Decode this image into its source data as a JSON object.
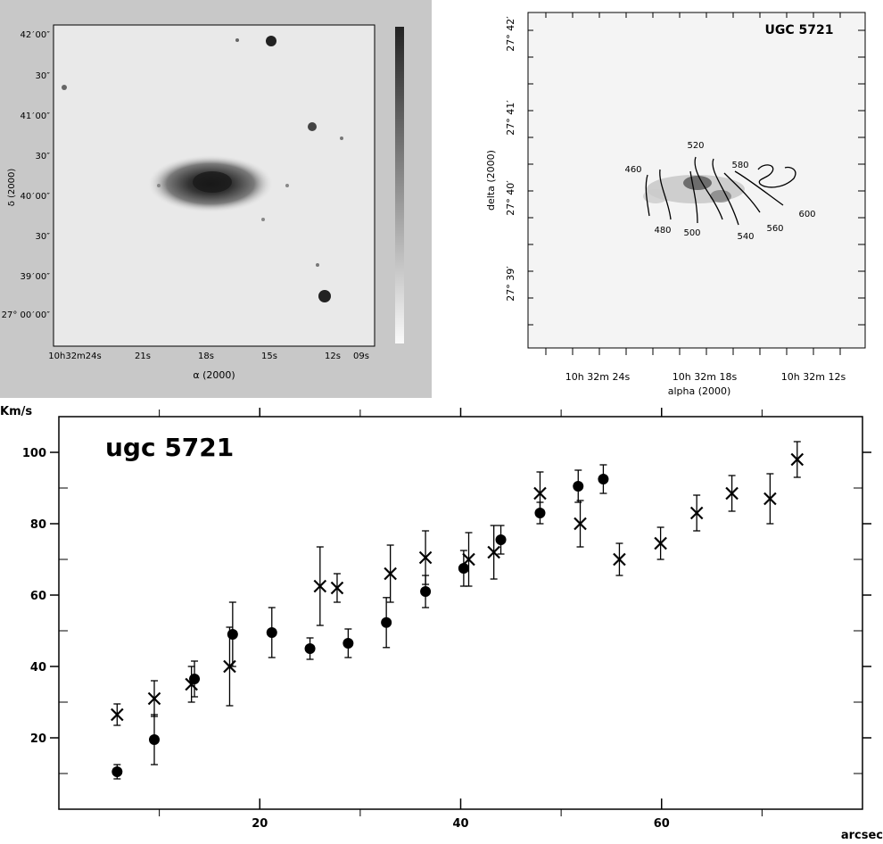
{
  "panel_a": {
    "dec_ticks": [
      "42 ′ 00″",
      "30″",
      "41 ′ 00″",
      "30″",
      "40 ′ 00″",
      "30″",
      "39 ′ 00″",
      "27° 00 ′ 00″"
    ],
    "ra_ticks": [
      "10h32m24s",
      "21s",
      "18s",
      "15s",
      "12s",
      "09s"
    ],
    "xlabel": "α (2000)",
    "ylabel": "δ (2000)"
  },
  "panel_b": {
    "title": "UGC 5721",
    "xlabel": "alpha (2000)",
    "ylabel": "delta (2000)",
    "ra_ticks": [
      "10h 32m 24s",
      "10h 32m 18s",
      "10h 32m 12s"
    ],
    "dec_ticks": [
      "27° 42′",
      "27° 41′",
      "27° 40′",
      "27° 39′"
    ],
    "contour_labels": [
      "460",
      "480",
      "500",
      "520",
      "540",
      "560",
      "580",
      "600"
    ]
  },
  "chart_data": {
    "type": "scatter",
    "title": "ugc 5721",
    "xlabel": "arcsec",
    "ylabel": "Km/s",
    "xlim": [
      0,
      80
    ],
    "ylim": [
      0,
      110
    ],
    "x_ticks": [
      20,
      40,
      60
    ],
    "y_ticks": [
      20,
      40,
      60,
      80,
      100
    ],
    "series": [
      {
        "marker": "circle",
        "points": [
          {
            "x": 5.8,
            "y": 10.5,
            "err": 2
          },
          {
            "x": 9.5,
            "y": 19.5,
            "err": 7
          },
          {
            "x": 13.5,
            "y": 36.5,
            "err": 5
          },
          {
            "x": 17.3,
            "y": 49,
            "err": 9
          },
          {
            "x": 21.2,
            "y": 49.5,
            "err": 7
          },
          {
            "x": 25,
            "y": 45,
            "err": 3
          },
          {
            "x": 28.8,
            "y": 46.5,
            "err": 4
          },
          {
            "x": 32.6,
            "y": 52.3,
            "err": 7
          },
          {
            "x": 36.5,
            "y": 61,
            "err": 4.5
          },
          {
            "x": 40.3,
            "y": 67.5,
            "err": 5
          },
          {
            "x": 44,
            "y": 75.5,
            "err": 4
          },
          {
            "x": 47.9,
            "y": 83,
            "err": 3
          },
          {
            "x": 51.7,
            "y": 90.5,
            "err": 4.5
          },
          {
            "x": 54.2,
            "y": 92.5,
            "err": 4
          }
        ]
      },
      {
        "marker": "cross",
        "points": [
          {
            "x": 5.8,
            "y": 26.5,
            "err": 3
          },
          {
            "x": 9.5,
            "y": 31,
            "err": 5
          },
          {
            "x": 13.2,
            "y": 35,
            "err": 5
          },
          {
            "x": 17,
            "y": 40,
            "err": 11
          },
          {
            "x": 26,
            "y": 62.5,
            "err": 11
          },
          {
            "x": 27.7,
            "y": 62,
            "err": 4
          },
          {
            "x": 33,
            "y": 66,
            "err": 8
          },
          {
            "x": 36.5,
            "y": 70.5,
            "err": 7.5
          },
          {
            "x": 40.8,
            "y": 70,
            "err": 7.5
          },
          {
            "x": 43.3,
            "y": 72,
            "err": 7.5
          },
          {
            "x": 47.9,
            "y": 88.5,
            "err": 6
          },
          {
            "x": 51.9,
            "y": 80,
            "err": 6.5
          },
          {
            "x": 55.8,
            "y": 70,
            "err": 4.5
          },
          {
            "x": 59.9,
            "y": 74.5,
            "err": 4.5
          },
          {
            "x": 63.5,
            "y": 83,
            "err": 5
          },
          {
            "x": 67,
            "y": 88.5,
            "err": 5
          },
          {
            "x": 70.8,
            "y": 87,
            "err": 7
          },
          {
            "x": 73.5,
            "y": 98,
            "err": 5
          }
        ]
      }
    ]
  }
}
